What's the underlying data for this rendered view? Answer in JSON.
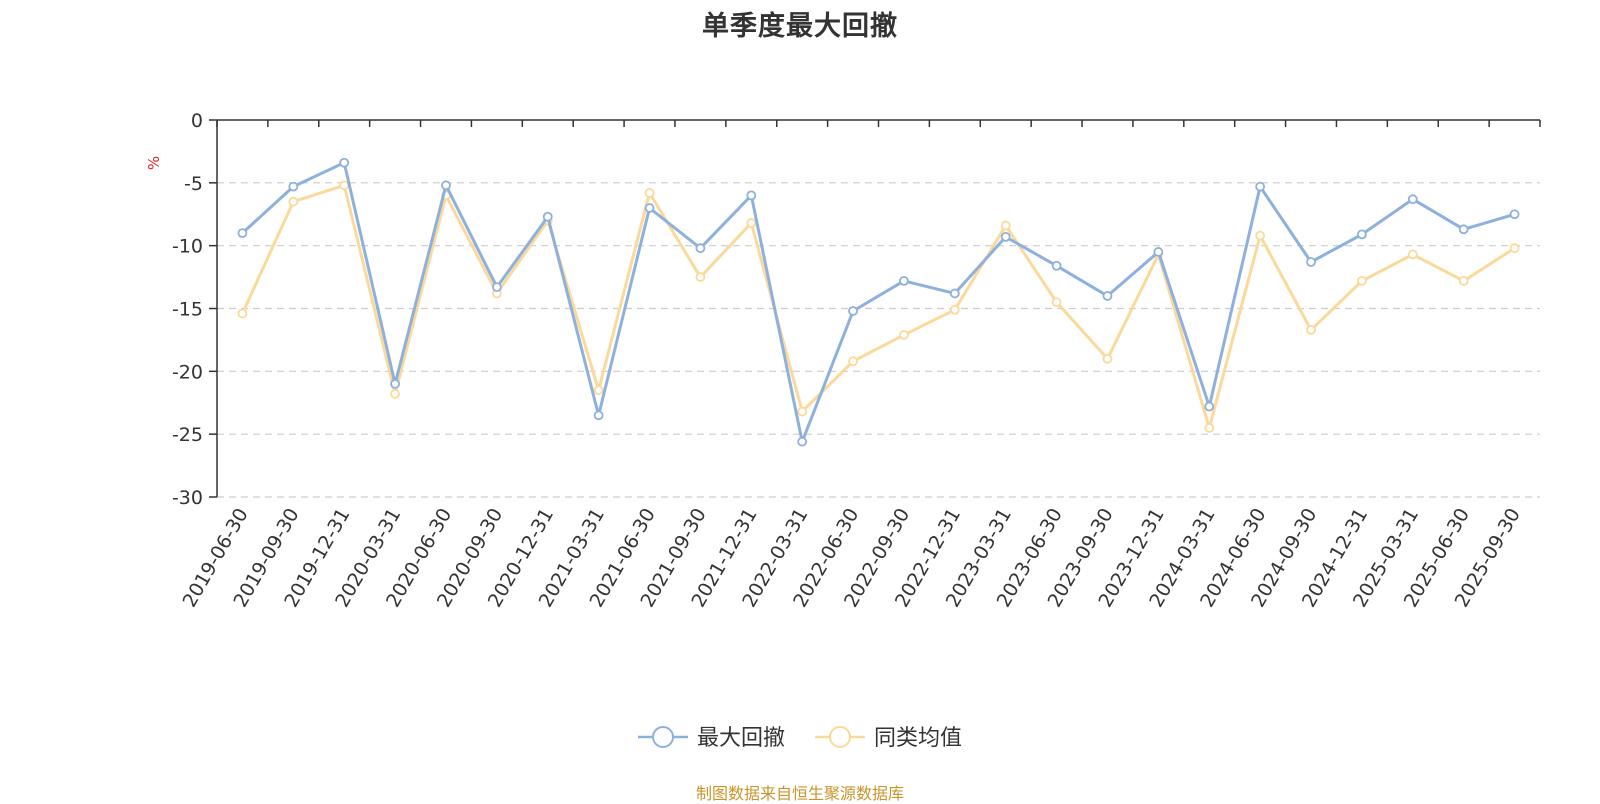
{
  "title": "单季度最大回撤",
  "source": "制图数据来自恒生聚源数据库",
  "colors": {
    "series1": "#8eb0dc",
    "series2": "#fbd99a",
    "unit": "#e8231c",
    "source": "#c8952c",
    "grid": "#cccccc",
    "axis": "#333333"
  },
  "chart_data": {
    "type": "line",
    "title": "单季度最大回撤",
    "ylabel": "%",
    "xlabel": "",
    "ylim": [
      -30,
      0
    ],
    "yticks": [
      0,
      -5,
      -10,
      -15,
      -20,
      -25,
      -30
    ],
    "grid": true,
    "legend_position": "bottom-center",
    "categories": [
      "2019-06-30",
      "2019-09-30",
      "2019-12-31",
      "2020-03-31",
      "2020-06-30",
      "2020-09-30",
      "2020-12-31",
      "2021-03-31",
      "2021-06-30",
      "2021-09-30",
      "2021-12-31",
      "2022-03-31",
      "2022-06-30",
      "2022-09-30",
      "2022-12-31",
      "2023-03-31",
      "2023-06-30",
      "2023-09-30",
      "2023-12-31",
      "2024-03-31",
      "2024-06-30",
      "2024-09-30",
      "2024-12-31",
      "2025-03-31",
      "2025-06-30",
      "2025-09-30"
    ],
    "series": [
      {
        "name": "最大回撤",
        "values": [
          -9.0,
          -5.3,
          -3.4,
          -21.0,
          -5.2,
          -13.3,
          -7.7,
          -23.5,
          -7.0,
          -10.2,
          -6.0,
          -25.6,
          -15.2,
          -12.8,
          -13.8,
          -9.3,
          -11.6,
          -14.0,
          -10.5,
          -22.8,
          -5.3,
          -11.3,
          -9.1,
          -6.3,
          -8.7,
          -7.5
        ]
      },
      {
        "name": "同类均值",
        "values": [
          -15.4,
          -6.5,
          -5.2,
          -21.8,
          -6.0,
          -13.8,
          -8.0,
          -21.5,
          -5.8,
          -12.5,
          -8.2,
          -23.2,
          -19.2,
          -17.1,
          -15.1,
          -8.4,
          -14.5,
          -19.0,
          -10.7,
          -24.5,
          -9.2,
          -16.7,
          -12.8,
          -10.7,
          -12.8,
          -10.2
        ]
      }
    ]
  }
}
